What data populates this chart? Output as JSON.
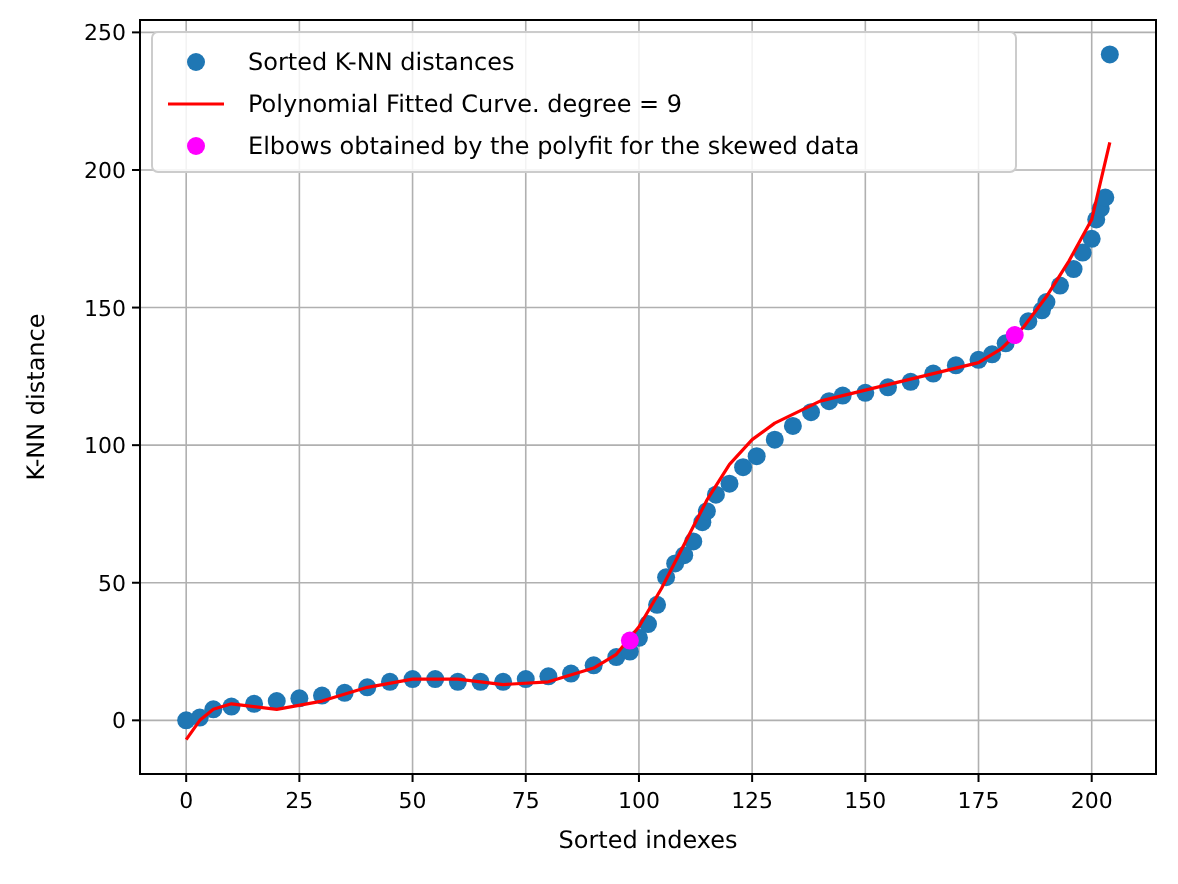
{
  "chart_data": {
    "type": "scatter",
    "xlabel": "Sorted indexes",
    "ylabel": "K-NN distance",
    "xlim": [
      -10.2,
      214.2
    ],
    "ylim": [
      -19.5,
      254.5
    ],
    "xticks": [
      0,
      25,
      50,
      75,
      100,
      125,
      150,
      175,
      200
    ],
    "yticks": [
      0,
      50,
      100,
      150,
      200,
      250
    ],
    "grid": true,
    "legend": "top left",
    "series": [
      {
        "name": "Sorted K-NN distances",
        "marker": "circle",
        "color": "#1f77b4",
        "x": [
          0,
          3,
          6,
          10,
          15,
          20,
          25,
          30,
          35,
          40,
          45,
          50,
          55,
          60,
          65,
          70,
          75,
          80,
          85,
          90,
          95,
          98,
          100,
          102,
          104,
          106,
          108,
          110,
          112,
          114,
          115,
          117,
          120,
          123,
          126,
          130,
          134,
          138,
          142,
          145,
          150,
          155,
          160,
          165,
          170,
          175,
          178,
          181,
          186,
          189,
          190,
          193,
          196,
          198,
          200,
          201,
          202,
          203,
          204
        ],
        "values": [
          0,
          1,
          4,
          5,
          6,
          7,
          8,
          9,
          10,
          12,
          14,
          15,
          15,
          14,
          14,
          14,
          15,
          16,
          17,
          20,
          23,
          25,
          30,
          35,
          42,
          52,
          57,
          60,
          65,
          72,
          76,
          82,
          86,
          92,
          96,
          102,
          107,
          112,
          116,
          118,
          119,
          121,
          123,
          126,
          129,
          131,
          133,
          137,
          145,
          149,
          152,
          158,
          164,
          170,
          175,
          182,
          186,
          190,
          242
        ]
      },
      {
        "name": "Polynomial Fitted Curve. degree = 9",
        "type": "line",
        "marker": "none",
        "line_style": "solid",
        "color": "#ff0000",
        "x": [
          0,
          3,
          6,
          10,
          20,
          30,
          40,
          50,
          60,
          70,
          80,
          90,
          95,
          100,
          105,
          110,
          115,
          120,
          125,
          130,
          140,
          150,
          160,
          170,
          175,
          180,
          185,
          190,
          195,
          200,
          204
        ],
        "values": [
          -7,
          0,
          4,
          6,
          4,
          7,
          12,
          15,
          15,
          13,
          14,
          19,
          24,
          34,
          48,
          64,
          80,
          93,
          102,
          108,
          116,
          120,
          124,
          128,
          130,
          135,
          143,
          154,
          167,
          182,
          210
        ]
      },
      {
        "name": "Elbows obtained by the polyfit for the skewed data",
        "marker": "circle",
        "color": "#ff00ff",
        "x": [
          98,
          183
        ],
        "values": [
          29,
          140
        ]
      }
    ]
  }
}
